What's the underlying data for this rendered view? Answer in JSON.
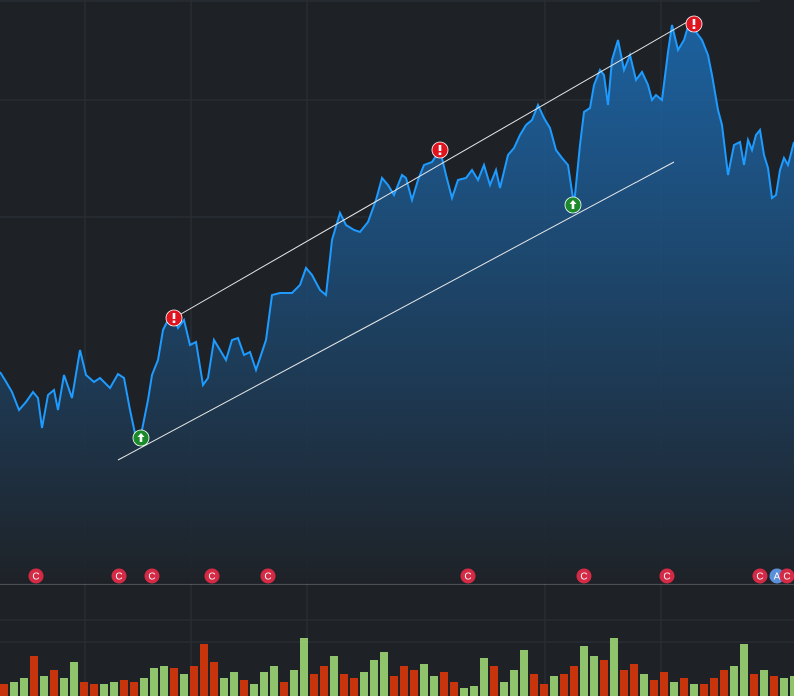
{
  "chart_data": {
    "type": "line",
    "x": [
      0,
      5,
      12,
      19,
      26,
      33,
      38,
      42,
      48,
      54,
      58,
      64,
      72,
      80,
      86,
      94,
      100,
      110,
      118,
      124,
      130,
      136,
      142,
      148,
      152,
      158,
      163,
      168,
      174,
      178,
      184,
      190,
      196,
      203,
      208,
      214,
      220,
      226,
      232,
      238,
      244,
      250,
      256,
      262,
      266,
      272,
      280,
      292,
      300,
      306,
      312,
      320,
      326,
      332,
      340,
      346,
      354,
      360,
      368,
      376,
      382,
      388,
      394,
      402,
      406,
      412,
      418,
      424,
      432,
      440,
      446,
      452,
      458,
      466,
      472,
      478,
      484,
      490,
      496,
      500,
      508,
      514,
      520,
      526,
      532,
      538,
      544,
      550,
      556,
      562,
      568,
      574,
      580,
      584,
      590,
      594,
      600,
      604,
      608,
      612,
      618,
      624,
      630,
      636,
      642,
      648,
      652,
      656,
      662,
      668,
      672,
      678,
      684,
      690,
      696,
      702,
      708,
      712,
      718,
      722,
      728,
      734,
      740,
      744,
      748,
      752,
      756,
      760,
      764,
      768,
      772,
      776,
      780,
      784,
      788,
      794
    ],
    "values": [
      212,
      204,
      192,
      174,
      182,
      192,
      186,
      156,
      189,
      194,
      174,
      209,
      186,
      234,
      209,
      202,
      206,
      196,
      210,
      206,
      174,
      146,
      154,
      184,
      209,
      224,
      254,
      264,
      266,
      256,
      264,
      239,
      242,
      199,
      206,
      244,
      234,
      224,
      244,
      246,
      229,
      232,
      214,
      232,
      244,
      289,
      291,
      291,
      299,
      316,
      309,
      294,
      289,
      344,
      371,
      359,
      354,
      352,
      362,
      384,
      406,
      399,
      389,
      409,
      406,
      384,
      404,
      419,
      422,
      434,
      409,
      386,
      404,
      406,
      414,
      404,
      419,
      399,
      414,
      396,
      429,
      436,
      449,
      459,
      464,
      479,
      466,
      456,
      434,
      426,
      419,
      379,
      439,
      472,
      476,
      499,
      514,
      509,
      479,
      524,
      544,
      514,
      529,
      504,
      512,
      499,
      484,
      489,
      484,
      532,
      559,
      534,
      544,
      564,
      552,
      544,
      529,
      509,
      474,
      459,
      409,
      439,
      442,
      419,
      444,
      434,
      449,
      454,
      429,
      416,
      386,
      389,
      414,
      426,
      419,
      442
    ],
    "color": "#1e9bff",
    "xlim": [
      0,
      794
    ],
    "ylim": [
      0,
      584
    ],
    "trendlines": [
      [
        174,
        266,
        694,
        566
      ],
      [
        118,
        124,
        674,
        422
      ]
    ],
    "signals": [
      {
        "x": 174,
        "value": 266,
        "kind": "down"
      },
      {
        "x": 440,
        "value": 434,
        "kind": "down"
      },
      {
        "x": 694,
        "value": 560,
        "kind": "down"
      },
      {
        "x": 141,
        "value": 146,
        "kind": "up"
      },
      {
        "x": 573,
        "value": 379,
        "kind": "up"
      }
    ],
    "events": [
      {
        "x": 36,
        "label": "C"
      },
      {
        "x": 119,
        "label": "C"
      },
      {
        "x": 152,
        "label": "C"
      },
      {
        "x": 212,
        "label": "C"
      },
      {
        "x": 268,
        "label": "C"
      },
      {
        "x": 468,
        "label": "C"
      },
      {
        "x": 584,
        "label": "C"
      },
      {
        "x": 667,
        "label": "C"
      },
      {
        "x": 760,
        "label": "C"
      },
      {
        "x": 777,
        "label": "A"
      },
      {
        "x": 787,
        "label": "C"
      }
    ],
    "volume": {
      "x": [
        0,
        10,
        20,
        30,
        40,
        50,
        60,
        70,
        80,
        90,
        100,
        110,
        120,
        130,
        140,
        150,
        160,
        170,
        180,
        190,
        200,
        210,
        220,
        230,
        240,
        250,
        260,
        270,
        280,
        290,
        300,
        310,
        320,
        330,
        340,
        350,
        360,
        370,
        380,
        390,
        400,
        410,
        420,
        430,
        440,
        450,
        460,
        470,
        480,
        490,
        500,
        510,
        520,
        530,
        540,
        550,
        560,
        570,
        580,
        590,
        600,
        610,
        620,
        630,
        640,
        650,
        660,
        670,
        680,
        690,
        700,
        710,
        720,
        730,
        740,
        750,
        760,
        770,
        780,
        790
      ],
      "values": [
        12,
        14,
        18,
        40,
        20,
        26,
        18,
        34,
        14,
        12,
        12,
        14,
        16,
        14,
        18,
        28,
        30,
        28,
        22,
        30,
        52,
        34,
        18,
        24,
        16,
        12,
        24,
        30,
        14,
        26,
        58,
        22,
        30,
        40,
        22,
        18,
        24,
        36,
        44,
        20,
        30,
        26,
        32,
        20,
        24,
        14,
        8,
        10,
        38,
        30,
        14,
        26,
        46,
        22,
        12,
        20,
        22,
        30,
        50,
        40,
        36,
        58,
        26,
        32,
        22,
        16,
        24,
        14,
        18,
        12,
        12,
        18,
        26,
        30,
        52,
        22,
        26,
        20,
        18,
        20
      ],
      "colors": [
        "#c8340c",
        "#8fc46c",
        "#8fc46c",
        "#c8340c",
        "#8fc46c",
        "#c8340c",
        "#8fc46c",
        "#8fc46c",
        "#c8340c",
        "#c8340c",
        "#8fc46c",
        "#8fc46c",
        "#c8340c",
        "#c8340c",
        "#8fc46c",
        "#8fc46c",
        "#8fc46c",
        "#c8340c",
        "#8fc46c",
        "#c8340c",
        "#c8340c",
        "#c8340c",
        "#8fc46c",
        "#8fc46c",
        "#c8340c",
        "#8fc46c",
        "#8fc46c",
        "#8fc46c",
        "#c8340c",
        "#8fc46c",
        "#8fc46c",
        "#c8340c",
        "#c8340c",
        "#8fc46c",
        "#c8340c",
        "#c8340c",
        "#8fc46c",
        "#8fc46c",
        "#8fc46c",
        "#c8340c",
        "#c8340c",
        "#c8340c",
        "#8fc46c",
        "#8fc46c",
        "#c8340c",
        "#c8340c",
        "#8fc46c",
        "#8fc46c",
        "#8fc46c",
        "#c8340c",
        "#8fc46c",
        "#8fc46c",
        "#8fc46c",
        "#c8340c",
        "#c8340c",
        "#8fc46c",
        "#c8340c",
        "#c8340c",
        "#8fc46c",
        "#8fc46c",
        "#c8340c",
        "#8fc46c",
        "#c8340c",
        "#c8340c",
        "#8fc46c",
        "#c8340c",
        "#c8340c",
        "#8fc46c",
        "#c8340c",
        "#8fc46c",
        "#c8340c",
        "#c8340c",
        "#c8340c",
        "#8fc46c",
        "#8fc46c",
        "#c8340c",
        "#8fc46c",
        "#c8340c",
        "#8fc46c",
        "#8fc46c"
      ],
      "ylim": [
        0,
        110
      ]
    }
  }
}
